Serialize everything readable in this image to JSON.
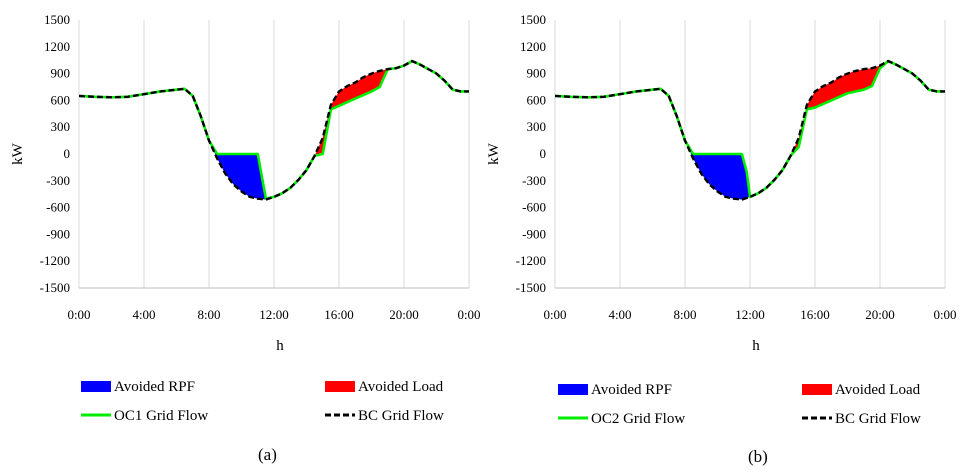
{
  "chart_data": [
    {
      "type": "area",
      "panel": "(a)",
      "xlabel": "h",
      "ylabel": "kW",
      "xlim": [
        0,
        24
      ],
      "ylim": [
        -1500,
        1500
      ],
      "x_ticks": [
        "0:00",
        "4:00",
        "8:00",
        "12:00",
        "16:00",
        "20:00",
        "0:00"
      ],
      "y_ticks": [
        "1500",
        "1200",
        "900",
        "600",
        "300",
        "0",
        "-300",
        "-600",
        "-900",
        "-1200",
        "-1500"
      ],
      "grid": "vertical",
      "legend_labels": [
        "Avoided RPF",
        "Avoided Load",
        "OC1 Grid Flow",
        "BC Grid Flow"
      ],
      "colors": {
        "rpf": "#0000ff",
        "load": "#ff0000",
        "oc": "#00ee00",
        "bc": "#000000"
      },
      "series": [
        {
          "name": "BC Grid Flow",
          "x": [
            0,
            1,
            2,
            3,
            4,
            5,
            6,
            6.5,
            7,
            7.5,
            8,
            8.5,
            9,
            9.5,
            10,
            10.5,
            11,
            11.5,
            12,
            12.5,
            13,
            13.5,
            14,
            14.5,
            15,
            15.5,
            16,
            16.5,
            17,
            17.5,
            18,
            18.5,
            19,
            19.5,
            20,
            20.5,
            21,
            21.5,
            22,
            22.5,
            23,
            23.5,
            24
          ],
          "y": [
            650,
            640,
            635,
            640,
            670,
            700,
            720,
            730,
            650,
            420,
            150,
            -50,
            -220,
            -340,
            -420,
            -480,
            -500,
            -510,
            -480,
            -440,
            -380,
            -290,
            -180,
            -20,
            180,
            550,
            700,
            760,
            800,
            860,
            900,
            930,
            950,
            960,
            990,
            1040,
            1000,
            950,
            900,
            820,
            720,
            700,
            700
          ]
        },
        {
          "name": "OC1 Grid Flow",
          "x": [
            0,
            1,
            2,
            3,
            4,
            5,
            6,
            6.5,
            7,
            7.5,
            8,
            8.5,
            9,
            9.5,
            10,
            10.5,
            11,
            11.2,
            11.5,
            12,
            12.5,
            13,
            13.5,
            14,
            14.5,
            15,
            15.5,
            16,
            16.5,
            17,
            17.5,
            18,
            18.5,
            19,
            19.5,
            20,
            20.5,
            21,
            21.5,
            22,
            22.5,
            23,
            23.5,
            24
          ],
          "y": [
            650,
            640,
            635,
            640,
            670,
            700,
            720,
            730,
            650,
            420,
            150,
            0,
            0,
            0,
            0,
            0,
            0,
            -200,
            -500,
            -480,
            -440,
            -380,
            -290,
            -180,
            -20,
            0,
            500,
            540,
            580,
            620,
            660,
            700,
            750,
            950,
            960,
            990,
            1040,
            1000,
            950,
            900,
            820,
            720,
            700,
            700
          ]
        }
      ]
    },
    {
      "type": "area",
      "panel": "(b)",
      "xlabel": "h",
      "ylabel": "kW",
      "xlim": [
        0,
        24
      ],
      "ylim": [
        -1500,
        1500
      ],
      "x_ticks": [
        "0:00",
        "4:00",
        "8:00",
        "12:00",
        "16:00",
        "20:00",
        "0:00"
      ],
      "y_ticks": [
        "1500",
        "1200",
        "900",
        "600",
        "300",
        "0",
        "-300",
        "-600",
        "-900",
        "-1200",
        "-1500"
      ],
      "grid": "vertical",
      "legend_labels": [
        "Avoided RPF",
        "Avoided Load",
        "OC2 Grid Flow",
        "BC Grid Flow"
      ],
      "colors": {
        "rpf": "#0000ff",
        "load": "#ff0000",
        "oc": "#00ee00",
        "bc": "#000000"
      },
      "series": [
        {
          "name": "BC Grid Flow",
          "x": [
            0,
            1,
            2,
            3,
            4,
            5,
            6,
            6.5,
            7,
            7.5,
            8,
            8.5,
            9,
            9.5,
            10,
            10.5,
            11,
            11.5,
            12,
            12.5,
            13,
            13.5,
            14,
            14.5,
            15,
            15.5,
            16,
            16.5,
            17,
            17.5,
            18,
            18.5,
            19,
            19.5,
            20,
            20.5,
            21,
            21.5,
            22,
            22.5,
            23,
            23.5,
            24
          ],
          "y": [
            650,
            640,
            635,
            640,
            670,
            700,
            720,
            730,
            650,
            420,
            150,
            -50,
            -220,
            -340,
            -420,
            -480,
            -500,
            -510,
            -480,
            -440,
            -380,
            -290,
            -180,
            -20,
            180,
            550,
            700,
            760,
            800,
            860,
            900,
            930,
            950,
            960,
            990,
            1040,
            1000,
            950,
            900,
            820,
            720,
            700,
            700
          ]
        },
        {
          "name": "OC2 Grid Flow",
          "x": [
            0,
            1,
            2,
            3,
            4,
            5,
            6,
            6.5,
            7,
            7.5,
            8,
            8.5,
            9,
            9.5,
            10,
            10.5,
            11,
            11.5,
            11.8,
            12,
            12.5,
            13,
            13.5,
            14,
            14.5,
            15,
            15.5,
            16,
            16.5,
            17,
            17.5,
            18,
            18.5,
            19,
            19.5,
            20,
            20.5,
            21,
            21.5,
            22,
            22.5,
            23,
            23.5,
            24
          ],
          "y": [
            650,
            640,
            635,
            640,
            670,
            700,
            720,
            730,
            650,
            420,
            150,
            0,
            0,
            0,
            0,
            0,
            0,
            0,
            -200,
            -480,
            -440,
            -380,
            -290,
            -180,
            -20,
            80,
            500,
            520,
            560,
            600,
            640,
            680,
            700,
            720,
            760,
            960,
            1040,
            1000,
            950,
            900,
            820,
            720,
            700,
            700
          ]
        }
      ]
    }
  ]
}
